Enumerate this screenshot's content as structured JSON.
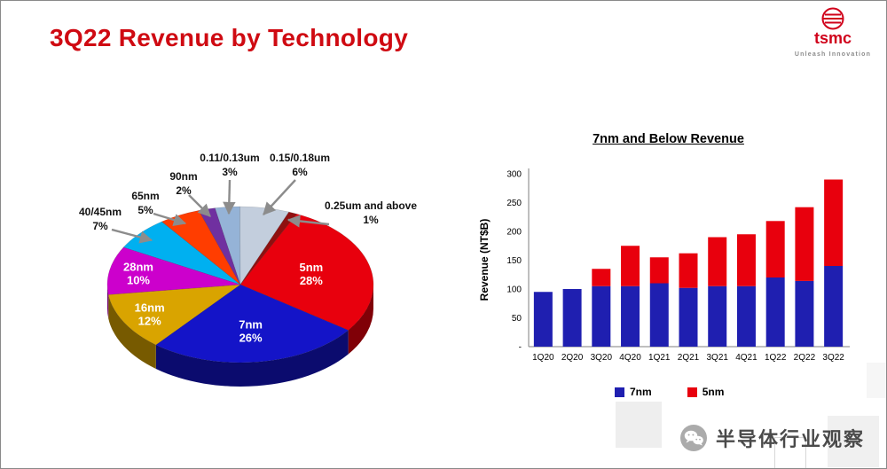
{
  "slide": {
    "title": "3Q22 Revenue by Technology",
    "logo": {
      "name": "tsmc",
      "tagline": "Unleash Innovation"
    },
    "watermark": "半导体行业观察"
  },
  "chart_data": [
    {
      "type": "pie",
      "style": "3d",
      "start_angle": -65,
      "slices": [
        {
          "label": "5nm",
          "pct": 28,
          "pct_label": "28%",
          "color": "#e8000d",
          "inside": true
        },
        {
          "label": "7nm",
          "pct": 26,
          "pct_label": "26%",
          "color": "#1414c8",
          "inside": true
        },
        {
          "label": "16nm",
          "pct": 12,
          "pct_label": "12%",
          "color": "#d9a400",
          "inside": true
        },
        {
          "label": "28nm",
          "pct": 10,
          "pct_label": "10%",
          "color": "#cc00cc",
          "inside": true
        },
        {
          "label": "40/45nm",
          "pct": 7,
          "pct_label": "7%",
          "color": "#00b0f0",
          "inside": false
        },
        {
          "label": "65nm",
          "pct": 5,
          "pct_label": "5%",
          "color": "#ff3d00",
          "inside": false
        },
        {
          "label": "90nm",
          "pct": 2,
          "pct_label": "2%",
          "color": "#7030a0",
          "inside": false
        },
        {
          "label": "0.11/0.13um",
          "pct": 3,
          "pct_label": "3%",
          "color": "#95b3d7",
          "inside": false
        },
        {
          "label": "0.15/0.18um",
          "pct": 6,
          "pct_label": "6%",
          "color": "#c3cedd",
          "inside": false
        },
        {
          "label": "0.25um and above",
          "pct": 1,
          "pct_label": "1%",
          "color": "#8f1010",
          "inside": false
        }
      ]
    },
    {
      "type": "bar",
      "variant": "stacked",
      "title": "7nm and Below Revenue",
      "ylabel": "Revenue (NT$B)",
      "categories": [
        "1Q20",
        "2Q20",
        "3Q20",
        "4Q20",
        "1Q21",
        "2Q21",
        "3Q21",
        "4Q21",
        "1Q22",
        "2Q22",
        "3Q22"
      ],
      "series": [
        {
          "name": "7nm",
          "color": "#1f1fb0",
          "values": [
            95,
            100,
            105,
            105,
            110,
            102,
            105,
            105,
            120,
            114,
            140
          ]
        },
        {
          "name": "5nm",
          "color": "#e8000d",
          "values": [
            0,
            0,
            30,
            70,
            45,
            60,
            85,
            90,
            98,
            128,
            150
          ]
        }
      ],
      "ylim": [
        0,
        300
      ],
      "yticks": [
        {
          "value": 300,
          "label": "300"
        },
        {
          "value": 250,
          "label": "250"
        },
        {
          "value": 200,
          "label": "200"
        },
        {
          "value": 150,
          "label": "150"
        },
        {
          "value": 100,
          "label": "100"
        },
        {
          "value": 50,
          "label": "50"
        },
        {
          "value": 0,
          "label": "-"
        }
      ],
      "legend_position": "bottom",
      "grid": false
    }
  ]
}
